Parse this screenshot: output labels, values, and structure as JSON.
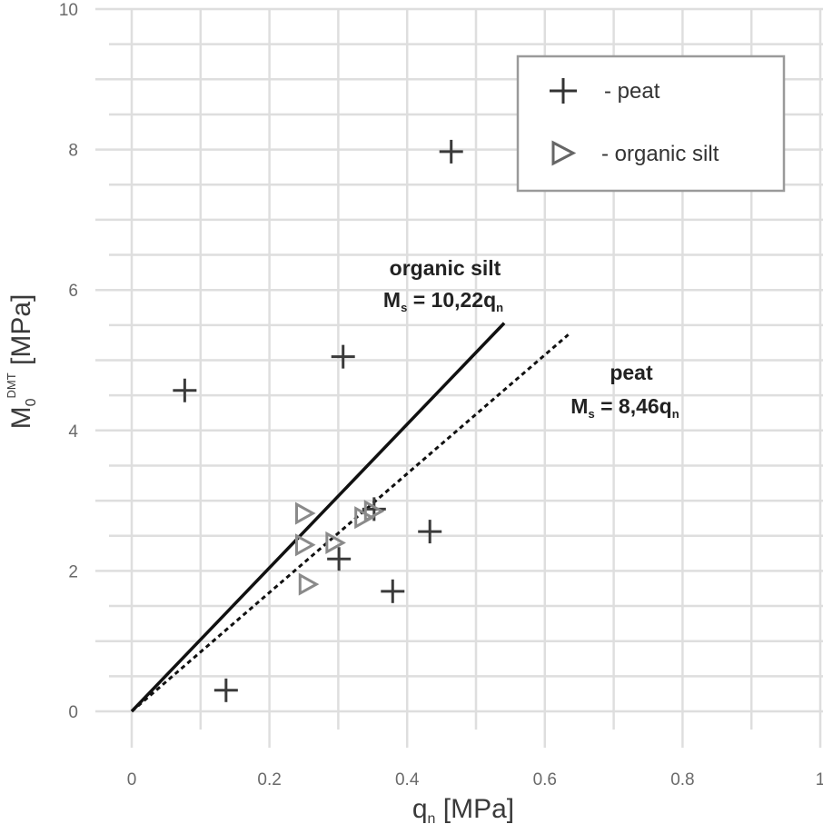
{
  "chart_data": {
    "type": "scatter",
    "title": "",
    "xlabel": "q_n [MPa]",
    "xlabel_main": "q",
    "xlabel_sub": "n",
    "xlabel_unit": " [MPa]",
    "ylabel": "M_0^DMT [MPa]",
    "ylabel_main": "M",
    "ylabel_sub": "0",
    "ylabel_sup": "DMT",
    "ylabel_unit": " [MPa]",
    "xlim": [
      0,
      1
    ],
    "ylim": [
      0,
      10
    ],
    "x_ticks": [
      "0",
      "0.2",
      "0.4",
      "0.6",
      "0.8",
      "1"
    ],
    "y_ticks": [
      "0",
      "2",
      "4",
      "6",
      "8",
      "10"
    ],
    "grid": true,
    "legend_position": "upper right",
    "series": [
      {
        "name": "peat",
        "marker": "plus",
        "points": [
          [
            0.077,
            4.57
          ],
          [
            0.307,
            5.05
          ],
          [
            0.464,
            7.97
          ],
          [
            0.433,
            2.56
          ],
          [
            0.379,
            1.71
          ],
          [
            0.301,
            2.17
          ],
          [
            0.137,
            0.3
          ],
          [
            0.352,
            2.88
          ]
        ]
      },
      {
        "name": "organic silt",
        "marker": "triangle-right",
        "points": [
          [
            0.25,
            2.82
          ],
          [
            0.255,
            1.81
          ],
          [
            0.25,
            2.37
          ],
          [
            0.294,
            2.4
          ],
          [
            0.336,
            2.76
          ],
          [
            0.35,
            2.85
          ]
        ]
      }
    ],
    "fit_lines": [
      {
        "name": "organic silt",
        "equation": "M_s = 10,22 q_n",
        "slope": 10.22,
        "style": "solid",
        "x_range": [
          0,
          0.541
        ]
      },
      {
        "name": "peat",
        "equation": "M_s = 8,46 q_n",
        "slope": 8.46,
        "style": "dashed",
        "x_range": [
          0,
          0.634
        ]
      }
    ]
  },
  "legend": {
    "items": [
      {
        "symbol": "+",
        "label": "- peat"
      },
      {
        "symbol": "▷",
        "label": "- organic silt"
      }
    ]
  },
  "annotations": {
    "silt": {
      "title": "organic silt",
      "eq_main": "M",
      "eq_sub": "s",
      "eq_mid": " = 10,22q",
      "eq_tail_sub": "n"
    },
    "peat": {
      "title": "peat",
      "eq_main": "M",
      "eq_sub": "s",
      "eq_mid": " = 8,46q",
      "eq_tail_sub": "n"
    }
  }
}
